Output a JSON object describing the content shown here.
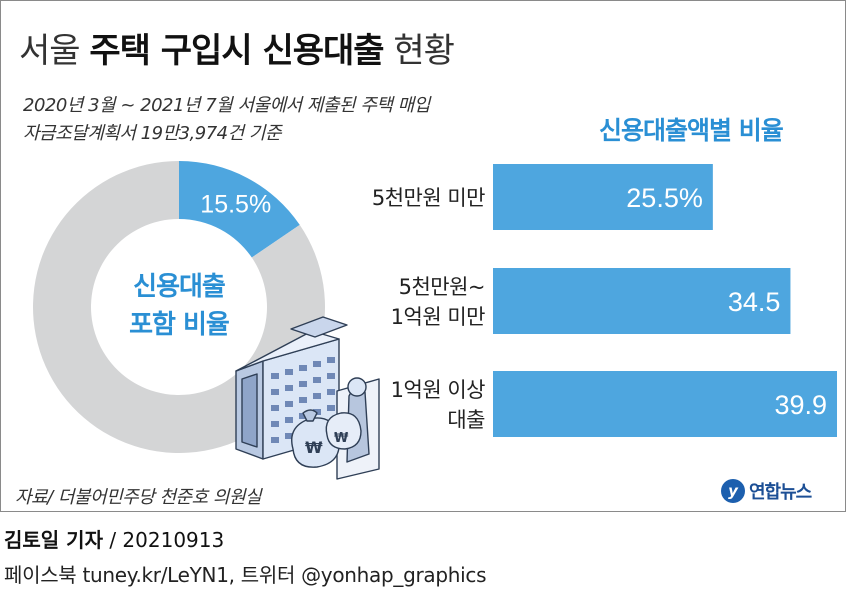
{
  "title_thin1": "서울",
  "title_bold": "주택 구입시 신용대출",
  "title_thin2": "현황",
  "subtitle_line1": "2020년 3월 ~ 2021년 7월 서울에서 제출된 주택 매입",
  "subtitle_line2": "자금조달계획서 19만3,974건 기준",
  "chart_data": [
    {
      "type": "pie",
      "donut": true,
      "title": "",
      "center_label_lines": [
        "신용대출",
        "포함 비율"
      ],
      "slices": [
        {
          "name": "신용대출 포함",
          "value": 15.5,
          "label": "15.5%",
          "color": "#4ea6df"
        },
        {
          "name": "",
          "value": 84.5,
          "label": "",
          "color": "#d4d5d6"
        }
      ]
    },
    {
      "type": "bar",
      "orientation": "horizontal",
      "title": "신용대출액별 비율",
      "categories": [
        {
          "lines": [
            "5천만원 미만"
          ]
        },
        {
          "lines": [
            "5천만원~",
            "1억원 미만"
          ]
        },
        {
          "lines": [
            "1억원 이상",
            "대출"
          ]
        }
      ],
      "values": [
        25.5,
        34.5,
        39.9
      ],
      "value_labels": [
        "25.5%",
        "34.5",
        "39.9"
      ],
      "unit": "%",
      "xlim": [
        0,
        39.9
      ],
      "color": "#4ea6df"
    }
  ],
  "source": "자료/ 더불어민주당 천준호 의원실",
  "logo_mark": "y",
  "logo_text": "연합뉴스",
  "credit_name": "김토일 기자",
  "credit_date": " / 20210913",
  "social": "페이스북 tuney.kr/LeYN1, 트위터 @yonhap_graphics",
  "colors": {
    "accent": "#2a8fd4",
    "bar": "#4ea6df",
    "donut_rest": "#d4d5d6"
  },
  "icon": "apartment-building-money-bags-illustration"
}
